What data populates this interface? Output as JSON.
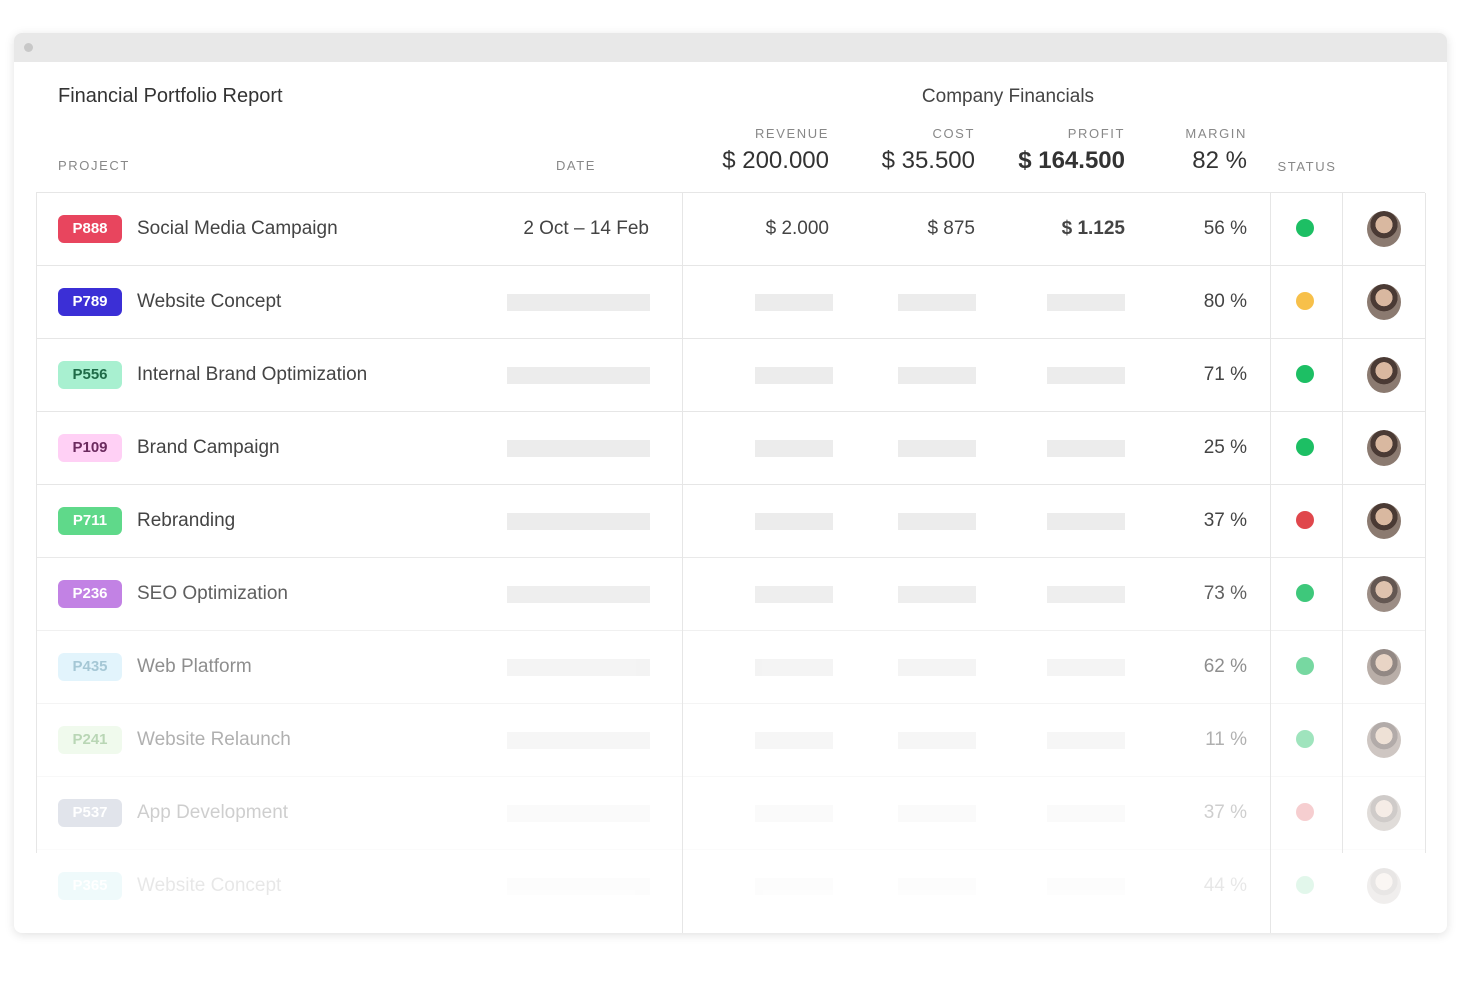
{
  "header": {
    "title": "Financial Portfolio Report",
    "group_title": "Company Financials"
  },
  "columns": {
    "project": "PROJECT",
    "date": "DATE",
    "revenue": "REVENUE",
    "cost": "COST",
    "profit": "PROFIT",
    "margin": "MARGIN",
    "status": "STATUS"
  },
  "totals": {
    "revenue": "$ 200.000",
    "cost": "$ 35.500",
    "profit": "$ 164.500",
    "margin": "82 %"
  },
  "rows": [
    {
      "code": "P888",
      "name": "Social Media Campaign",
      "badge_color": "#e8455e",
      "badge_text_color": "#ffffff",
      "date": "2 Oct  –  14 Feb",
      "revenue": "$ 2.000",
      "cost": "$ 875",
      "profit": "$ 1.125",
      "margin": "56 %",
      "status_color": "#1dbf64"
    },
    {
      "code": "P789",
      "name": "Website Concept",
      "badge_color": "#3b2fd6",
      "badge_text_color": "#ffffff",
      "margin": "80 %",
      "status_color": "#f7c04a"
    },
    {
      "code": "P556",
      "name": "Internal Brand Optimization",
      "badge_color": "#a8f0d0",
      "badge_text_color": "#1f6b48",
      "margin": "71 %",
      "status_color": "#1dbf64"
    },
    {
      "code": "P109",
      "name": "Brand Campaign",
      "badge_color": "#ffd0f5",
      "badge_text_color": "#6b2a5e",
      "margin": "25 %",
      "status_color": "#1dbf64"
    },
    {
      "code": "P711",
      "name": "Rebranding",
      "badge_color": "#5fd98a",
      "badge_text_color": "#ffffff",
      "margin": "37 %",
      "status_color": "#e0474c"
    },
    {
      "code": "P236",
      "name": "SEO Optimization",
      "badge_color": "#b86de0",
      "badge_text_color": "#ffffff",
      "margin": "73 %",
      "status_color": "#1dbf64"
    },
    {
      "code": "P435",
      "name": "Web Platform",
      "badge_color": "#cfeefb",
      "badge_text_color": "#6aa3ba",
      "margin": "62 %",
      "status_color": "#1dbf64"
    },
    {
      "code": "P241",
      "name": "Website Relaunch",
      "badge_color": "#dcf5d6",
      "badge_text_color": "#5aa050",
      "margin": "11 %",
      "status_color": "#1dbf64"
    },
    {
      "code": "P537",
      "name": "App Development",
      "badge_color": "#8d99b5",
      "badge_text_color": "#ffffff",
      "margin": "37 %",
      "status_color": "#e0474c"
    },
    {
      "code": "P365",
      "name": "Website Concept",
      "badge_color": "#7fd9e6",
      "badge_text_color": "#ffffff",
      "margin": "44 %",
      "status_color": "#1dbf64"
    }
  ]
}
